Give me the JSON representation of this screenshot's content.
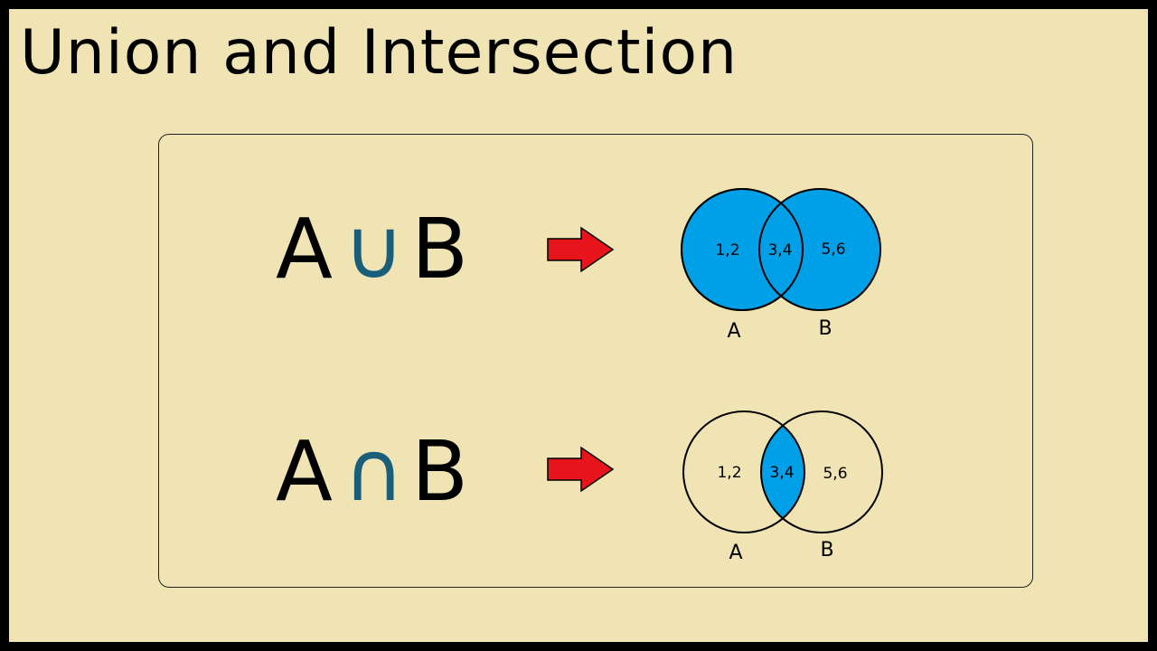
{
  "title": "Union and Intersection",
  "colors": {
    "background": "#f0e4b4",
    "fill": "#00a0e8",
    "operator": "#1a5f7a",
    "arrow": "#e8141c",
    "outline": "#000000"
  },
  "rows": [
    {
      "left": "A",
      "operator": "∪",
      "right": "B",
      "set_a_label": "A",
      "set_b_label": "B",
      "only_a": "1,2",
      "both": "3,4",
      "only_b": "5,6",
      "shaded_region": "union"
    },
    {
      "left": "A",
      "operator": "∩",
      "right": "B",
      "set_a_label": "A",
      "set_b_label": "B",
      "only_a": "1,2",
      "both": "3,4",
      "only_b": "5,6",
      "shaded_region": "intersection"
    }
  ]
}
